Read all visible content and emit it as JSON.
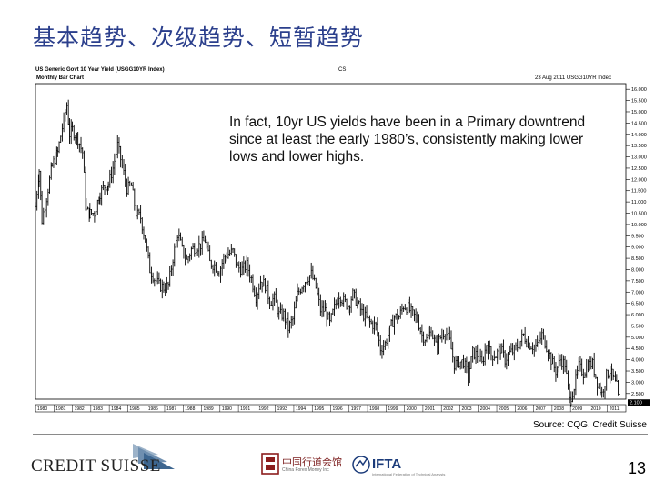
{
  "slide": {
    "title": "基本趋势、次级趋势、短暂趋势",
    "annotation": "In fact, 10yr US yields have been in a Primary downtrend since at least the early 1980’s, consistently making lower lows and lower highs.",
    "source": "Source: CQG, Credit Suisse",
    "page_number": "13"
  },
  "chart_header": {
    "left_title": "US Generic Govt 10 Year Yield (USGG10YR Index)",
    "center": "CS",
    "subtitle": "Monthly Bar Chart",
    "date_info": "23 Aug 2011 USGG10YR Index"
  },
  "footer": {
    "logo_text": "CREDIT SUISSE",
    "partner_text": "中国行道会馆",
    "partner_sub": "China Forex Money Inc",
    "ifta_text": "IFTA",
    "ifta_sub": "International Federation of Technical Analysts"
  },
  "colors": {
    "title": "#2b3f8c",
    "bars": "#000000",
    "frame": "#000000"
  },
  "chart_data": {
    "type": "bar",
    "subtype": "ohlc-monthly",
    "title": "US Generic Govt 10 Year Yield (USGG10YR Index)",
    "subtitle": "Monthly Bar Chart",
    "xlabel": "",
    "ylabel": "",
    "y_ticks": [
      2.5,
      3.0,
      3.5,
      4.0,
      4.5,
      5.0,
      5.5,
      6.0,
      6.5,
      7.0,
      7.5,
      8.0,
      8.5,
      9.0,
      9.5,
      10.0,
      10.5,
      11.0,
      11.5,
      12.0,
      12.5,
      13.0,
      13.5,
      14.0,
      14.5,
      15.0,
      15.5,
      16.0
    ],
    "ylim": [
      2.25,
      16.25
    ],
    "x_tick_labels": [
      "1980",
      "1981",
      "1982",
      "1983",
      "1984",
      "1985",
      "1986",
      "1987",
      "1988",
      "1989",
      "1990",
      "1991",
      "1992",
      "1993",
      "1994",
      "1995",
      "1996",
      "1997",
      "1998",
      "1999",
      "2000",
      "2001",
      "2002",
      "2003",
      "2004",
      "2005",
      "2006",
      "2007",
      "2008",
      "2009",
      "2010",
      "2011"
    ],
    "xlim": [
      1980,
      2012
    ],
    "last_value": 2.1,
    "grid": false,
    "series": [
      {
        "values": [
          [
            1980.0,
            10.8
          ],
          [
            1980.2,
            12.4
          ],
          [
            1980.35,
            10.2
          ],
          [
            1980.6,
            11.2
          ],
          [
            1980.9,
            12.6
          ],
          [
            1981.2,
            13.2
          ],
          [
            1981.45,
            14.3
          ],
          [
            1981.7,
            15.3
          ],
          [
            1981.85,
            14.0
          ],
          [
            1982.0,
            14.2
          ],
          [
            1982.3,
            13.8
          ],
          [
            1982.55,
            13.2
          ],
          [
            1982.75,
            10.6
          ],
          [
            1982.95,
            10.5
          ],
          [
            1983.2,
            10.5
          ],
          [
            1983.5,
            11.4
          ],
          [
            1983.75,
            11.7
          ],
          [
            1983.95,
            11.8
          ],
          [
            1984.2,
            12.5
          ],
          [
            1984.45,
            13.5
          ],
          [
            1984.7,
            12.6
          ],
          [
            1984.95,
            11.6
          ],
          [
            1985.2,
            11.7
          ],
          [
            1985.45,
            10.5
          ],
          [
            1985.7,
            10.3
          ],
          [
            1985.95,
            9.3
          ],
          [
            1986.2,
            8.0
          ],
          [
            1986.45,
            7.6
          ],
          [
            1986.7,
            7.3
          ],
          [
            1986.95,
            7.2
          ],
          [
            1987.2,
            7.3
          ],
          [
            1987.45,
            8.5
          ],
          [
            1987.7,
            9.6
          ],
          [
            1987.95,
            8.9
          ],
          [
            1988.2,
            8.4
          ],
          [
            1988.45,
            8.9
          ],
          [
            1988.7,
            9.0
          ],
          [
            1988.95,
            9.1
          ],
          [
            1989.2,
            9.3
          ],
          [
            1989.45,
            8.3
          ],
          [
            1989.7,
            8.2
          ],
          [
            1989.95,
            7.9
          ],
          [
            1990.2,
            8.5
          ],
          [
            1990.45,
            8.7
          ],
          [
            1990.7,
            8.8
          ],
          [
            1990.95,
            8.1
          ],
          [
            1991.2,
            8.0
          ],
          [
            1991.45,
            8.2
          ],
          [
            1991.7,
            7.6
          ],
          [
            1991.95,
            6.8
          ],
          [
            1992.2,
            7.5
          ],
          [
            1992.45,
            7.3
          ],
          [
            1992.7,
            6.6
          ],
          [
            1992.95,
            6.7
          ],
          [
            1993.2,
            6.0
          ],
          [
            1993.45,
            6.0
          ],
          [
            1993.7,
            5.4
          ],
          [
            1993.95,
            5.8
          ],
          [
            1994.2,
            6.9
          ],
          [
            1994.45,
            7.3
          ],
          [
            1994.7,
            7.6
          ],
          [
            1994.95,
            7.8
          ],
          [
            1995.2,
            7.2
          ],
          [
            1995.45,
            6.2
          ],
          [
            1995.7,
            6.2
          ],
          [
            1995.95,
            5.6
          ],
          [
            1996.2,
            6.3
          ],
          [
            1996.45,
            6.9
          ],
          [
            1996.7,
            6.6
          ],
          [
            1996.95,
            6.4
          ],
          [
            1997.2,
            6.9
          ],
          [
            1997.45,
            6.5
          ],
          [
            1997.7,
            6.1
          ],
          [
            1997.95,
            5.8
          ],
          [
            1998.2,
            5.6
          ],
          [
            1998.45,
            5.5
          ],
          [
            1998.7,
            4.5
          ],
          [
            1998.95,
            4.7
          ],
          [
            1999.2,
            5.3
          ],
          [
            1999.45,
            5.9
          ],
          [
            1999.7,
            5.9
          ],
          [
            1999.95,
            6.4
          ],
          [
            2000.2,
            6.3
          ],
          [
            2000.45,
            6.0
          ],
          [
            2000.7,
            5.8
          ],
          [
            2000.95,
            5.1
          ],
          [
            2001.2,
            4.9
          ],
          [
            2001.45,
            5.3
          ],
          [
            2001.7,
            4.6
          ],
          [
            2001.95,
            5.0
          ],
          [
            2002.2,
            5.3
          ],
          [
            2002.45,
            4.8
          ],
          [
            2002.7,
            3.8
          ],
          [
            2002.95,
            3.9
          ],
          [
            2003.2,
            3.9
          ],
          [
            2003.45,
            3.3
          ],
          [
            2003.7,
            4.3
          ],
          [
            2003.95,
            4.2
          ],
          [
            2004.2,
            3.8
          ],
          [
            2004.45,
            4.7
          ],
          [
            2004.7,
            4.2
          ],
          [
            2004.95,
            4.2
          ],
          [
            2005.2,
            4.5
          ],
          [
            2005.45,
            4.0
          ],
          [
            2005.7,
            4.3
          ],
          [
            2005.95,
            4.4
          ],
          [
            2006.2,
            4.7
          ],
          [
            2006.45,
            5.1
          ],
          [
            2006.7,
            4.7
          ],
          [
            2006.95,
            4.6
          ],
          [
            2007.2,
            4.6
          ],
          [
            2007.45,
            5.1
          ],
          [
            2007.7,
            4.6
          ],
          [
            2007.95,
            4.0
          ],
          [
            2008.2,
            3.5
          ],
          [
            2008.45,
            4.0
          ],
          [
            2008.7,
            3.8
          ],
          [
            2008.95,
            2.2
          ],
          [
            2009.2,
            2.8
          ],
          [
            2009.45,
            3.7
          ],
          [
            2009.7,
            3.4
          ],
          [
            2009.95,
            3.8
          ],
          [
            2010.2,
            3.8
          ],
          [
            2010.45,
            3.0
          ],
          [
            2010.7,
            2.5
          ],
          [
            2010.95,
            3.3
          ],
          [
            2011.15,
            3.5
          ],
          [
            2011.35,
            3.1
          ],
          [
            2011.5,
            2.8
          ],
          [
            2011.62,
            2.1
          ]
        ]
      }
    ]
  }
}
